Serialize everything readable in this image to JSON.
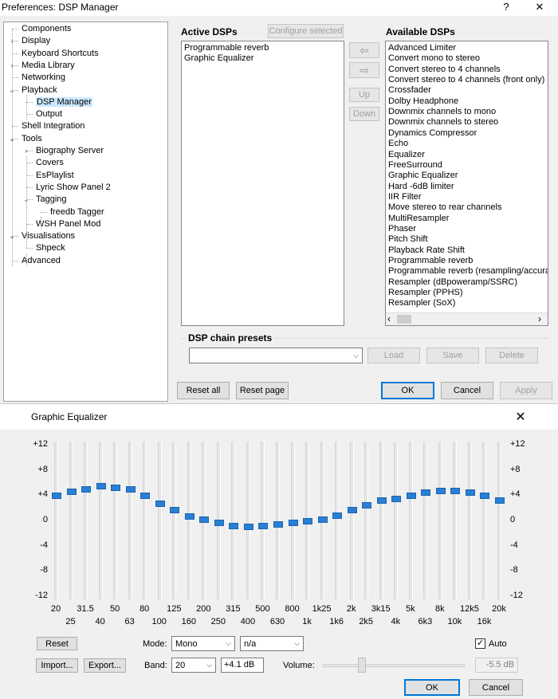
{
  "preferences": {
    "title": "Preferences: DSP Manager",
    "help_glyph": "?",
    "close_glyph": "✕",
    "tree": [
      {
        "label": "Components",
        "depth": 0,
        "twisty": ""
      },
      {
        "label": "Display",
        "depth": 0,
        "twisty": "›"
      },
      {
        "label": "Keyboard Shortcuts",
        "depth": 0,
        "twisty": ""
      },
      {
        "label": "Media Library",
        "depth": 0,
        "twisty": "›"
      },
      {
        "label": "Networking",
        "depth": 0,
        "twisty": ""
      },
      {
        "label": "Playback",
        "depth": 0,
        "twisty": "⌄"
      },
      {
        "label": "DSP Manager",
        "depth": 1,
        "twisty": "",
        "selected": true
      },
      {
        "label": "Output",
        "depth": 1,
        "twisty": ""
      },
      {
        "label": "Shell Integration",
        "depth": 0,
        "twisty": ""
      },
      {
        "label": "Tools",
        "depth": 0,
        "twisty": "⌄"
      },
      {
        "label": "Biography Server",
        "depth": 1,
        "twisty": "›"
      },
      {
        "label": "Covers",
        "depth": 1,
        "twisty": ""
      },
      {
        "label": "EsPlaylist",
        "depth": 1,
        "twisty": ""
      },
      {
        "label": "Lyric Show Panel 2",
        "depth": 1,
        "twisty": ""
      },
      {
        "label": "Tagging",
        "depth": 1,
        "twisty": "⌄"
      },
      {
        "label": "freedb Tagger",
        "depth": 2,
        "twisty": ""
      },
      {
        "label": "WSH Panel Mod",
        "depth": 1,
        "twisty": ""
      },
      {
        "label": "Visualisations",
        "depth": 0,
        "twisty": "⌄"
      },
      {
        "label": "Shpeck",
        "depth": 1,
        "twisty": ""
      },
      {
        "label": "Advanced",
        "depth": 0,
        "twisty": ""
      }
    ],
    "active_dsps_heading": "Active DSPs",
    "configure_selected_label": "Configure selected",
    "active_dsps": [
      "Programmable reverb",
      "Graphic Equalizer"
    ],
    "available_dsps_heading": "Available DSPs",
    "available_dsps": [
      "Advanced Limiter",
      "Convert mono to stereo",
      "Convert stereo to 4 channels",
      "Convert stereo to 4 channels (front only)",
      "Crossfader",
      "Dolby Headphone",
      "Downmix channels to mono",
      "Downmix channels to stereo",
      "Dynamics Compressor",
      "Echo",
      "Equalizer",
      "FreeSurround",
      "Graphic Equalizer",
      "Hard -6dB limiter",
      "IIR Filter",
      "Move stereo to rear channels",
      "MultiResampler",
      "Phaser",
      "Pitch Shift",
      "Playback Rate Shift",
      "Programmable reverb",
      "Programmable reverb (resampling/accurate)",
      "Resampler (dBpoweramp/SSRC)",
      "Resampler (PPHS)",
      "Resampler (SoX)"
    ],
    "move_left_glyph": "⇦",
    "move_right_glyph": "⇨",
    "up_label": "Up",
    "down_label": "Down",
    "scroll_left_glyph": "‹",
    "scroll_right_glyph": "›",
    "presets_heading": "DSP chain presets",
    "preset_value": "",
    "load_label": "Load",
    "save_label": "Save",
    "delete_label": "Delete",
    "reset_all_label": "Reset all",
    "reset_page_label": "Reset page",
    "ok_label": "OK",
    "cancel_label": "Cancel",
    "apply_label": "Apply"
  },
  "equalizer": {
    "title": "Graphic Equalizer",
    "close_glyph": "✕",
    "scale_labels": [
      "+12",
      "+8",
      "+4",
      "0",
      "-4",
      "-8",
      "-12"
    ],
    "band_labels_top": [
      "20",
      "31.5",
      "50",
      "80",
      "125",
      "200",
      "315",
      "500",
      "800",
      "1k25",
      "2k",
      "3k15",
      "5k",
      "8k",
      "12k5",
      "20k"
    ],
    "band_labels_bottom": [
      "25",
      "40",
      "63",
      "100",
      "160",
      "250",
      "400",
      "630",
      "1k",
      "1k6",
      "2k5",
      "4k",
      "6k3",
      "10k",
      "16k"
    ],
    "band_gains_db": [
      4.1,
      4.7,
      5.1,
      5.6,
      5.3,
      5.0,
      4.0,
      2.8,
      1.8,
      0.7,
      0.2,
      -0.3,
      -0.8,
      -0.9,
      -0.8,
      -0.5,
      -0.2,
      0.0,
      0.3,
      0.9,
      1.8,
      2.5,
      3.3,
      3.6,
      4.0,
      4.5,
      4.8,
      4.8,
      4.5,
      4.0,
      3.3
    ],
    "reset_label": "Reset",
    "mode_label": "Mode:",
    "mode_value": "Mono",
    "channel_value": "n/a",
    "auto_label": "Auto",
    "auto_checked": "✓",
    "import_label": "Import...",
    "export_label": "Export...",
    "band_label": "Band:",
    "band_value": "20",
    "band_gain_value": "+4.1 dB",
    "volume_label": "Volume:",
    "volume_value": "-5.5 dB",
    "ok_label": "OK",
    "cancel_label": "Cancel"
  }
}
